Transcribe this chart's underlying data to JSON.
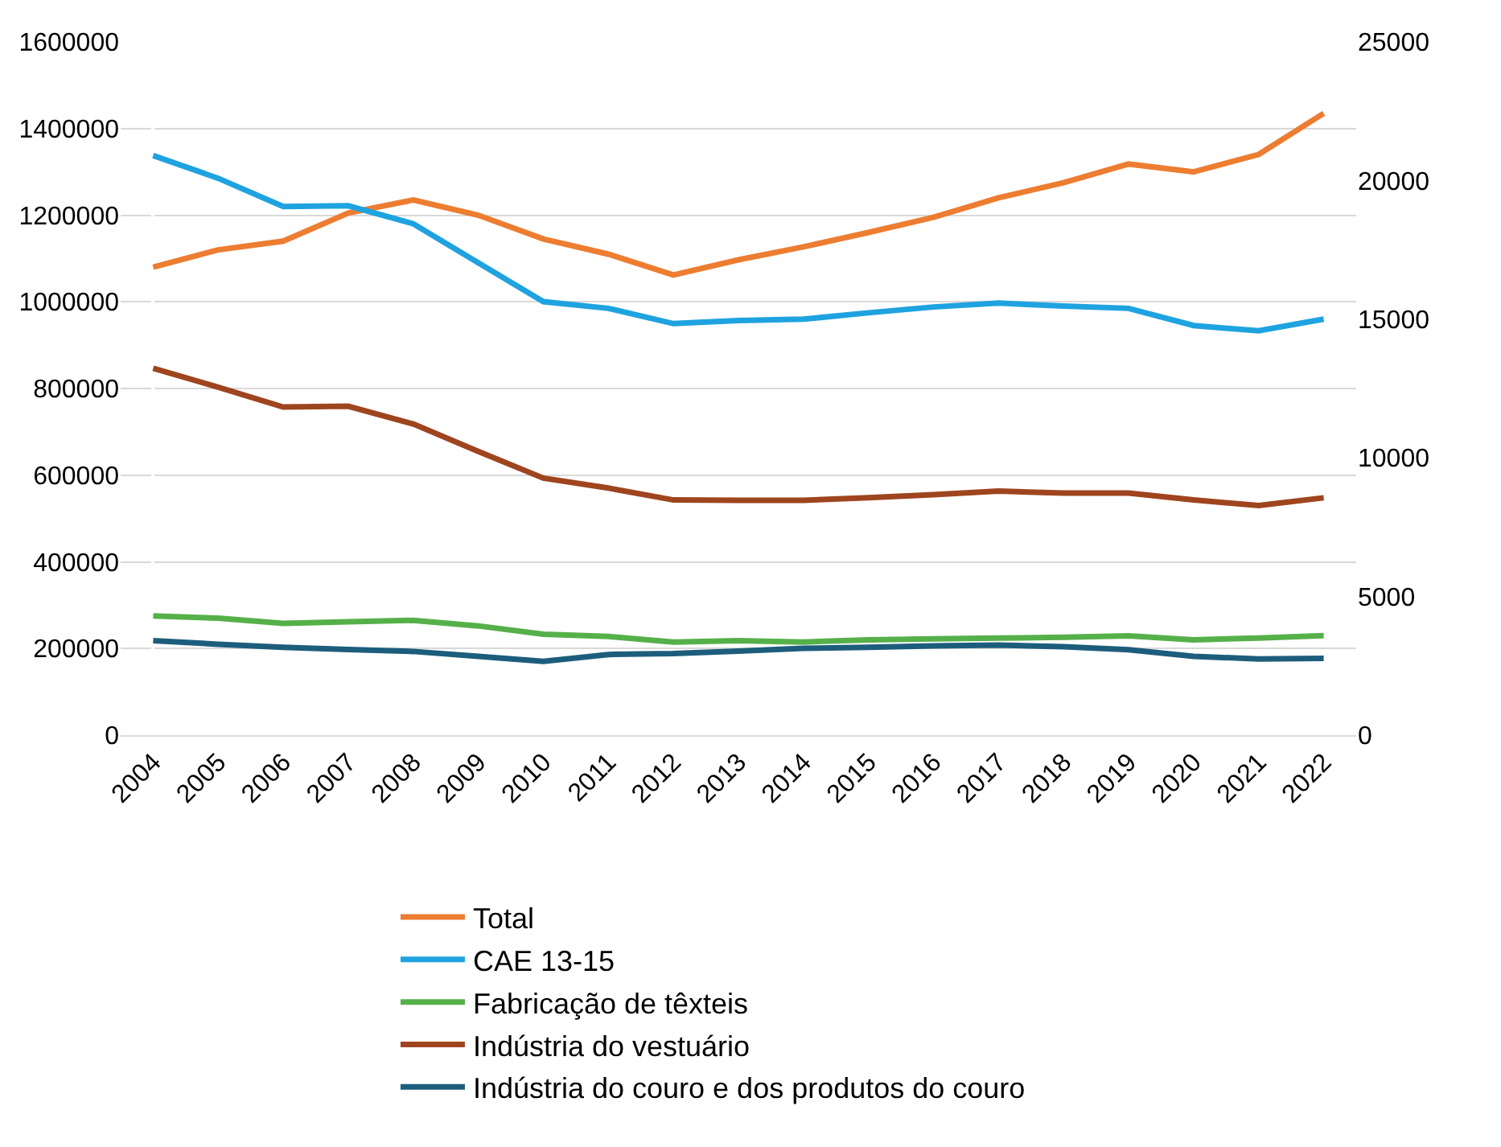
{
  "chart_data": {
    "type": "line",
    "categories": [
      "2004",
      "2005",
      "2006",
      "2007",
      "2008",
      "2009",
      "2010",
      "2011",
      "2012",
      "2013",
      "2014",
      "2015",
      "2016",
      "2017",
      "2018",
      "2019",
      "2020",
      "2021",
      "2022"
    ],
    "series": [
      {
        "name": "Total",
        "color": "#ed7d31",
        "values": [
          1080000,
          1120000,
          1140000,
          1205000,
          1235000,
          1200000,
          1145000,
          1110000,
          1062000,
          1097000,
          1127000,
          1160000,
          1195000,
          1240000,
          1275000,
          1318000,
          1300000,
          1340000,
          1435000
        ]
      },
      {
        "name": "CAE 13-15",
        "color": "#1fa3e0",
        "axis": "y2",
        "values": [
          20900,
          20080,
          19060,
          19090,
          18440,
          17030,
          15630,
          15390,
          14840,
          14950,
          15000,
          15230,
          15440,
          15580,
          15470,
          15390,
          14770,
          14580,
          15000
        ]
      },
      {
        "name": "Fabricação de têxteis",
        "color": "#56b04a",
        "axis": "y2",
        "values": [
          4300,
          4220,
          4030,
          4090,
          4140,
          3940,
          3640,
          3560,
          3360,
          3410,
          3360,
          3440,
          3470,
          3500,
          3530,
          3580,
          3440,
          3500,
          3590
        ]
      },
      {
        "name": "Indústria do vestuário",
        "color": "#9e451f",
        "axis": "y2",
        "values": [
          13230,
          12550,
          11830,
          11860,
          11220,
          10230,
          9270,
          8910,
          8480,
          8470,
          8470,
          8560,
          8670,
          8800,
          8730,
          8730,
          8480,
          8280,
          8560
        ]
      },
      {
        "name": "Indústria do couro e dos produtos do couro",
        "color": "#1d5d7c",
        "axis": "y2",
        "values": [
          3410,
          3280,
          3170,
          3090,
          3020,
          2840,
          2660,
          2910,
          2940,
          3030,
          3130,
          3170,
          3220,
          3250,
          3190,
          3080,
          2840,
          2750,
          2770
        ]
      }
    ],
    "ylim": [
      0,
      1600000
    ],
    "yticks": [
      0,
      200000,
      400000,
      600000,
      800000,
      1000000,
      1200000,
      1400000,
      1600000
    ],
    "y2lim": [
      0,
      25000
    ],
    "y2ticks": [
      0,
      5000,
      10000,
      15000,
      20000,
      25000
    ],
    "grid": "y",
    "legend": "bottom",
    "marker": "none",
    "line_style": "solid"
  }
}
